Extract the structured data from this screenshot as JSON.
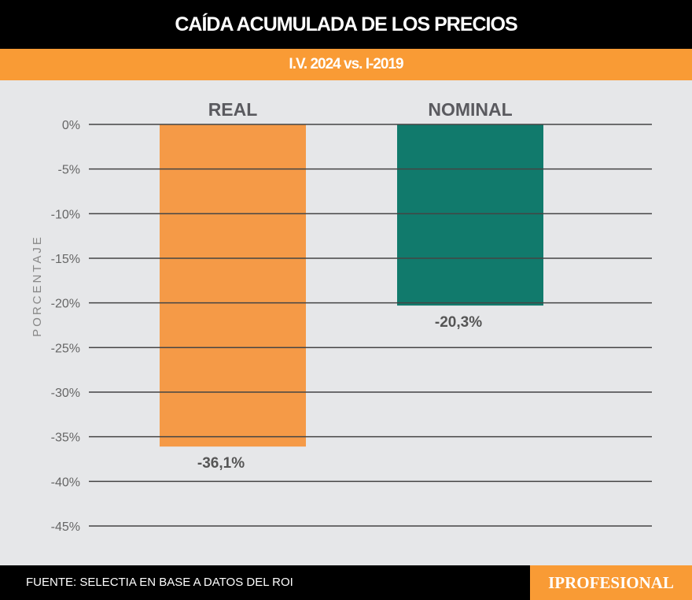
{
  "header": {
    "title": "CAÍDA ACUMULADA DE LOS PRECIOS",
    "subtitle": "I.V. 2024 vs. I-2019"
  },
  "footer": {
    "source": "FUENTE: SELECTIA EN BASE A DATOS DEL ROI",
    "logo": "IPROFESIONAL"
  },
  "chart_data": {
    "type": "bar",
    "title": "CAÍDA ACUMULADA DE LOS PRECIOS",
    "subtitle": "I.V. 2024 vs. I-2019",
    "categories": [
      "REAL",
      "NOMINAL"
    ],
    "values": [
      -36.1,
      -20.3
    ],
    "data_labels": [
      "-36,1%",
      "-20,3%"
    ],
    "colors": [
      "#f59a47",
      "#117a6c"
    ],
    "ylabel": "PORCENTAJE",
    "ylim": [
      -45,
      0
    ],
    "yticks": [
      "0%",
      "-5%",
      "-10%",
      "-15%",
      "-20%",
      "-25%",
      "-30%",
      "-35%",
      "-40%",
      "-45%"
    ],
    "grid": true
  }
}
